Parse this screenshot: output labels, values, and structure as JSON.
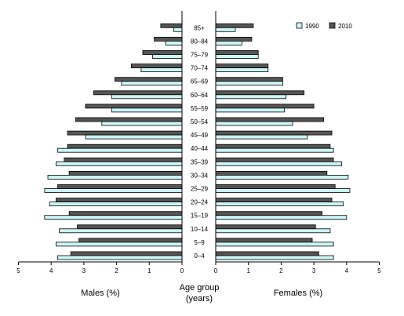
{
  "chart_data": {
    "type": "bar",
    "orientation": "horizontal",
    "layout": "population-pyramid",
    "categories": [
      "0–4",
      "5–9",
      "10–14",
      "15–19",
      "20–24",
      "25–29",
      "30–34",
      "35–39",
      "40–44",
      "45–49",
      "50–54",
      "55–59",
      "60–64",
      "65–69",
      "70–74",
      "75–79",
      "80–84",
      "85+"
    ],
    "center_label": [
      "Age group",
      "(years)"
    ],
    "left_label": "Males (%)",
    "right_label": "Females (%)",
    "xlim": [
      0,
      5
    ],
    "xticks": [
      0,
      1,
      2,
      3,
      4,
      5
    ],
    "legend_position": "top-right",
    "series": [
      {
        "name": "1990",
        "color": "#ccf5f5",
        "males": [
          3.8,
          3.85,
          3.75,
          4.2,
          4.05,
          4.2,
          4.1,
          3.85,
          3.8,
          2.95,
          2.45,
          2.15,
          2.15,
          1.85,
          1.25,
          0.9,
          0.5,
          0.25
        ],
        "females": [
          3.6,
          3.6,
          3.5,
          4.0,
          3.9,
          4.1,
          4.05,
          3.85,
          3.6,
          2.8,
          2.35,
          2.1,
          2.15,
          2.05,
          1.6,
          1.3,
          0.8,
          0.6
        ]
      },
      {
        "name": "2010",
        "color": "#555555",
        "males": [
          3.4,
          3.15,
          3.2,
          3.45,
          3.85,
          3.8,
          3.45,
          3.6,
          3.5,
          3.5,
          3.25,
          2.95,
          2.7,
          2.05,
          1.55,
          1.2,
          0.85,
          0.65
        ],
        "females": [
          3.15,
          2.95,
          3.05,
          3.25,
          3.55,
          3.65,
          3.4,
          3.6,
          3.5,
          3.55,
          3.3,
          3.0,
          2.7,
          2.05,
          1.6,
          1.3,
          1.1,
          1.15
        ]
      }
    ]
  }
}
